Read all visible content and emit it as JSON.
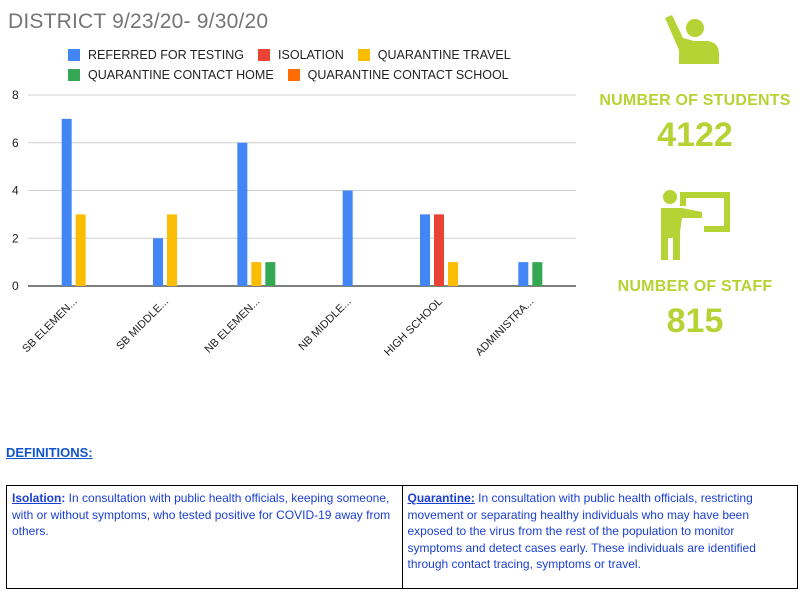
{
  "title": "DISTRICT 9/23/20- 9/30/20",
  "colors": {
    "accent_green": "#b5d334",
    "referred": "#4285f4",
    "isolation": "#ea4335",
    "quarantine_travel": "#fbbc04",
    "quarantine_contact_home": "#34a853",
    "quarantine_contact_school": "#ff6d01",
    "definition_text": "#1a3fd1"
  },
  "chart_data": {
    "type": "bar",
    "categories": [
      "SB ELEMEN...",
      "SB MIDDLE...",
      "NB ELEMEN...",
      "NB MIDDLE...",
      "HIGH SCHOOL",
      "ADMINISTRA..."
    ],
    "series": [
      {
        "name": "REFERRED FOR TESTING",
        "color": "#4285f4",
        "values": [
          7,
          2,
          6,
          4,
          3,
          1
        ]
      },
      {
        "name": "ISOLATION",
        "color": "#ea4335",
        "values": [
          0,
          0,
          0,
          0,
          3,
          0
        ]
      },
      {
        "name": "QUARANTINE TRAVEL",
        "color": "#fbbc04",
        "values": [
          3,
          3,
          1,
          0,
          1,
          0
        ]
      },
      {
        "name": "QUARANTINE CONTACT HOME",
        "color": "#34a853",
        "values": [
          0,
          0,
          1,
          0,
          0,
          1
        ]
      },
      {
        "name": "QUARANTINE CONTACT SCHOOL",
        "color": "#ff6d01",
        "values": [
          0,
          0,
          0,
          0,
          0,
          0
        ]
      }
    ],
    "yticks": [
      0,
      2,
      4,
      6,
      8
    ],
    "ylim": [
      0,
      8
    ],
    "grid": true,
    "legend_position": "top"
  },
  "stats": {
    "students": {
      "icon": "student-raising-hand-icon",
      "label": "NUMBER OF STUDENTS",
      "value": "4122"
    },
    "staff": {
      "icon": "teacher-at-board-icon",
      "label": "NUMBER OF STAFF",
      "value": "815"
    }
  },
  "definitions": {
    "heading": "DEFINITIONS:",
    "isolation": {
      "term": "Isolation",
      "text": "  In consultation with public health officials, keeping someone, with or without symptoms, who tested positive for COVID-19 away from others."
    },
    "quarantine": {
      "term": "Quarantine:",
      "text": " In consultation with public health officials, restricting movement or separating healthy individuals who may have been exposed to the virus from the rest of the population to monitor symptoms and detect cases early.  These individuals are identified through contact tracing, symptoms or travel."
    }
  }
}
